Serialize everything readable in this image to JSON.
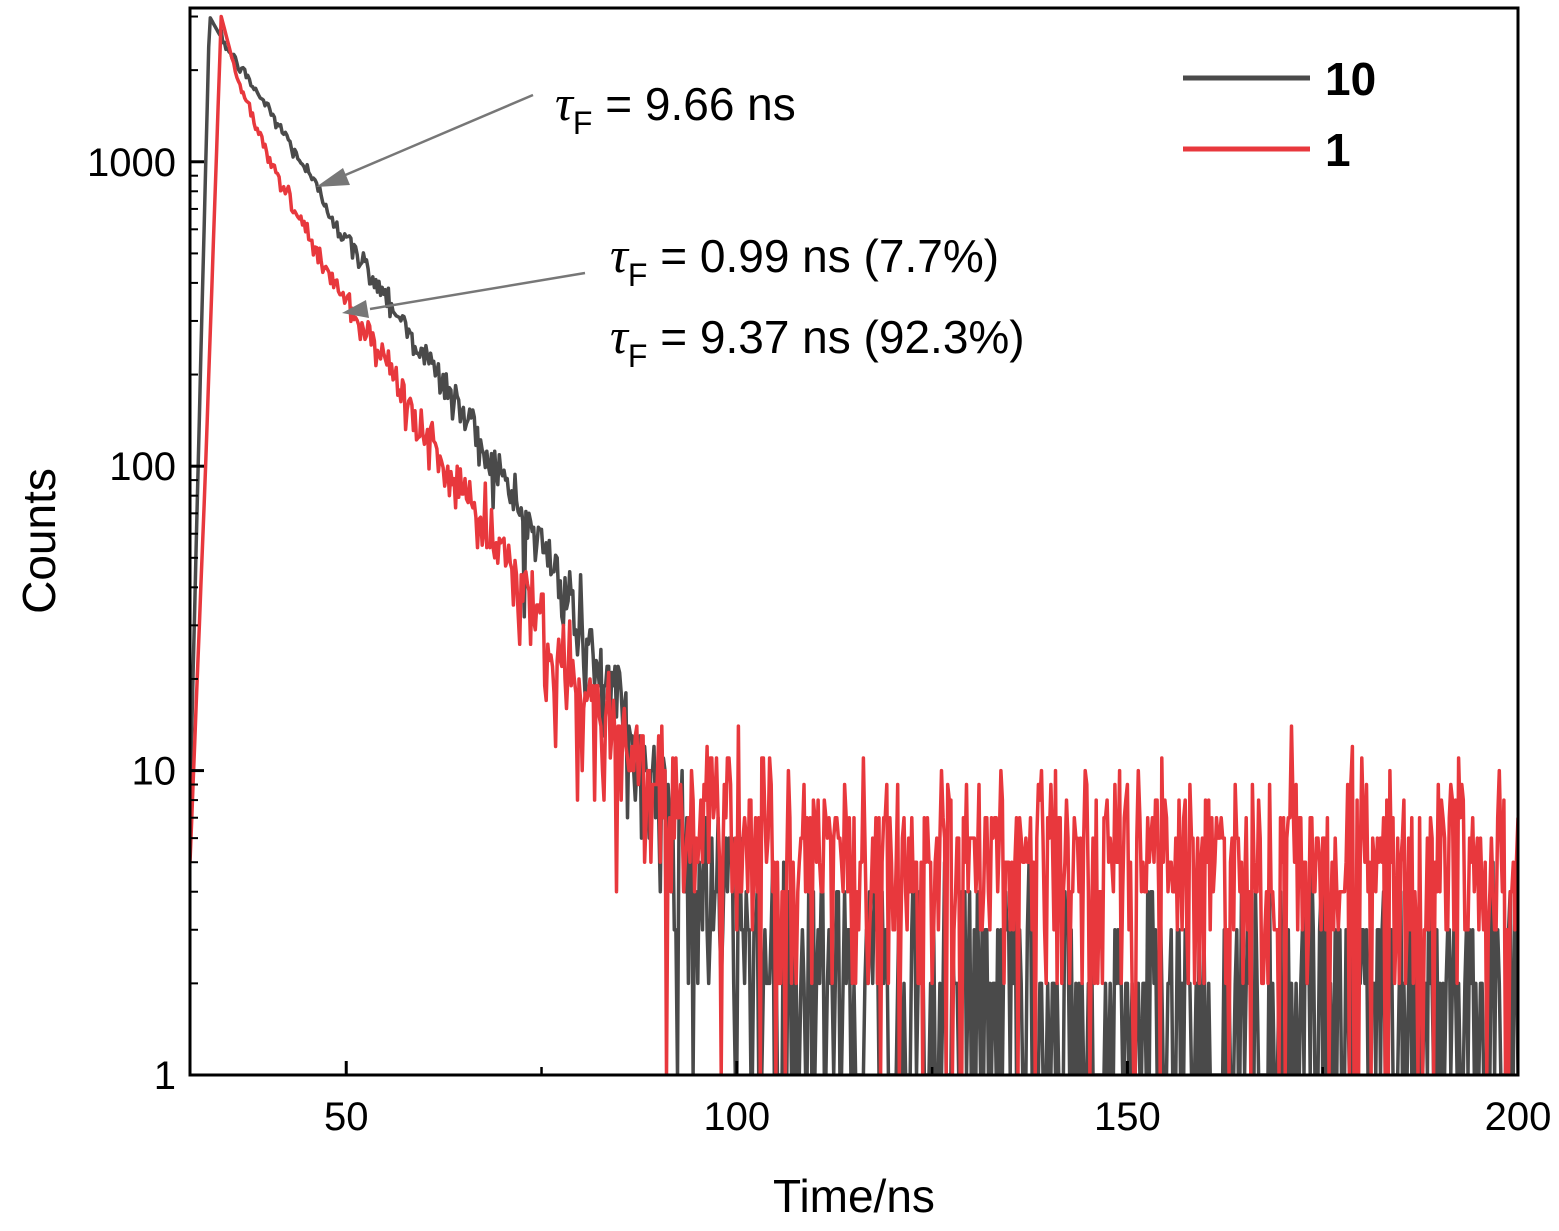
{
  "chart_data": {
    "type": "line",
    "yscale": "log",
    "xlabel": "Time/ns",
    "ylabel": "Counts",
    "xlim": [
      30,
      200
    ],
    "ylim": [
      1,
      3200
    ],
    "x_ticks": [
      {
        "value": 50,
        "label": "50"
      },
      {
        "value": 100,
        "label": "100"
      },
      {
        "value": 150,
        "label": "150"
      },
      {
        "value": 200,
        "label": "200"
      }
    ],
    "x_minor_ticks": [
      75,
      125,
      175
    ],
    "y_ticks": [
      {
        "value": 1,
        "label": "1"
      },
      {
        "value": 10,
        "label": "10"
      },
      {
        "value": 100,
        "label": "100"
      },
      {
        "value": 1000,
        "label": "1000"
      }
    ],
    "legend": {
      "placement": "top-right",
      "entries": [
        {
          "name": "10",
          "color": "#4a4a4a"
        },
        {
          "name": "1",
          "color": "#e8383d"
        }
      ]
    },
    "series": [
      {
        "name": "10",
        "color": "#4a4a4a",
        "peak_time": 32.5,
        "peak_counts": 3000,
        "lifetime_ns": 9.66,
        "background_counts": 1.5,
        "x": [
          30,
          31.5,
          32.5,
          35,
          40,
          45,
          50,
          55,
          60,
          65,
          70,
          75,
          80,
          85,
          90,
          95,
          100,
          110,
          120,
          140,
          160,
          180,
          200
        ],
        "y": [
          8,
          300,
          3000,
          2300,
          1500,
          930,
          550,
          370,
          230,
          150,
          90,
          55,
          30,
          15,
          8,
          5,
          3,
          2,
          1.5,
          1.5,
          1.5,
          1.5,
          1.5
        ]
      },
      {
        "name": "1",
        "color": "#e8383d",
        "peak_time": 34,
        "peak_counts": 3000,
        "lifetime_ns": [
          0.99,
          9.37
        ],
        "amplitude_percent": [
          7.7,
          92.3
        ],
        "background_counts": 5,
        "x": [
          30,
          32,
          34,
          36,
          40,
          45,
          50,
          55,
          60,
          65,
          70,
          75,
          80,
          85,
          90,
          95,
          100,
          110,
          120,
          140,
          160,
          180,
          200
        ],
        "y": [
          5,
          100,
          3000,
          1900,
          1050,
          580,
          340,
          210,
          130,
          80,
          50,
          30,
          18,
          12,
          9,
          7,
          6,
          5,
          5,
          5,
          5,
          5,
          5
        ]
      }
    ],
    "annotations": [
      {
        "symbol": "τ",
        "subscript": "F",
        "text": " = 9.66 ns",
        "points_to": "10"
      },
      {
        "symbol": "τ",
        "subscript": "F",
        "text": " = 0.99 ns (7.7%)",
        "points_to": "1"
      },
      {
        "symbol": "τ",
        "subscript": "F",
        "text": " = 9.37 ns (92.3%)",
        "points_to": "1"
      }
    ]
  }
}
